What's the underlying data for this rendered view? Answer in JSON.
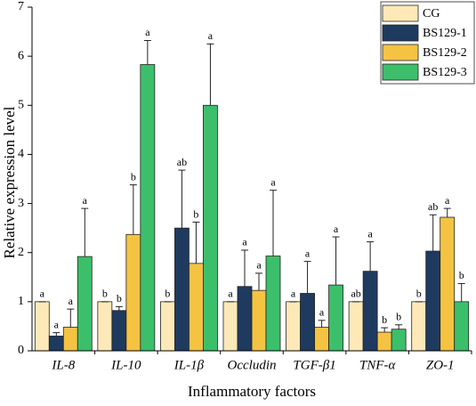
{
  "chart_data": {
    "type": "bar",
    "x_label": "Inflammatory factors",
    "y_label": "Relative expression level",
    "categories": [
      "IL-8",
      "IL-10",
      "IL-1β",
      "Occludin",
      "TGF-β1",
      "TNF-α",
      "ZO-1"
    ],
    "series": [
      {
        "name": "CG",
        "color": "#fde9b8",
        "values": [
          1,
          1,
          1,
          1,
          1,
          1,
          1
        ],
        "errors": [
          0,
          0,
          0,
          0,
          0,
          0,
          0
        ],
        "labels": [
          "a",
          "b",
          "b",
          "a",
          "a",
          "ab",
          "b"
        ]
      },
      {
        "name": "BS129-1",
        "color": "#1f3a5f",
        "values": [
          0.3,
          0.82,
          2.5,
          1.31,
          1.17,
          1.62,
          2.03
        ],
        "errors": [
          0.07,
          0.08,
          1.18,
          0.74,
          0.65,
          0.6,
          0.74
        ],
        "labels": [
          "a",
          "b",
          "ab",
          "a",
          "a",
          "a",
          "ab"
        ]
      },
      {
        "name": "BS129-2",
        "color": "#f5c342",
        "values": [
          0.48,
          2.37,
          1.78,
          1.23,
          0.48,
          0.38,
          2.72
        ],
        "errors": [
          0.37,
          1.01,
          0.84,
          0.35,
          0.14,
          0.09,
          0.18
        ],
        "labels": [
          "a",
          "b",
          "b",
          "a",
          "a",
          "b",
          "a"
        ]
      },
      {
        "name": "BS129-3",
        "color": "#3cbf6a",
        "values": [
          1.92,
          5.83,
          5.0,
          1.93,
          1.34,
          0.44,
          1.0
        ],
        "errors": [
          0.98,
          0.49,
          1.25,
          1.34,
          0.98,
          0.09,
          0.37
        ],
        "labels": [
          "a",
          "a",
          "a",
          "a",
          "a",
          "b",
          "b"
        ]
      }
    ],
    "ylim": [
      0,
      7
    ],
    "yticks": [
      0,
      1,
      2,
      3,
      4,
      5,
      6,
      7
    ],
    "legend": "upper right",
    "grid": false
  }
}
